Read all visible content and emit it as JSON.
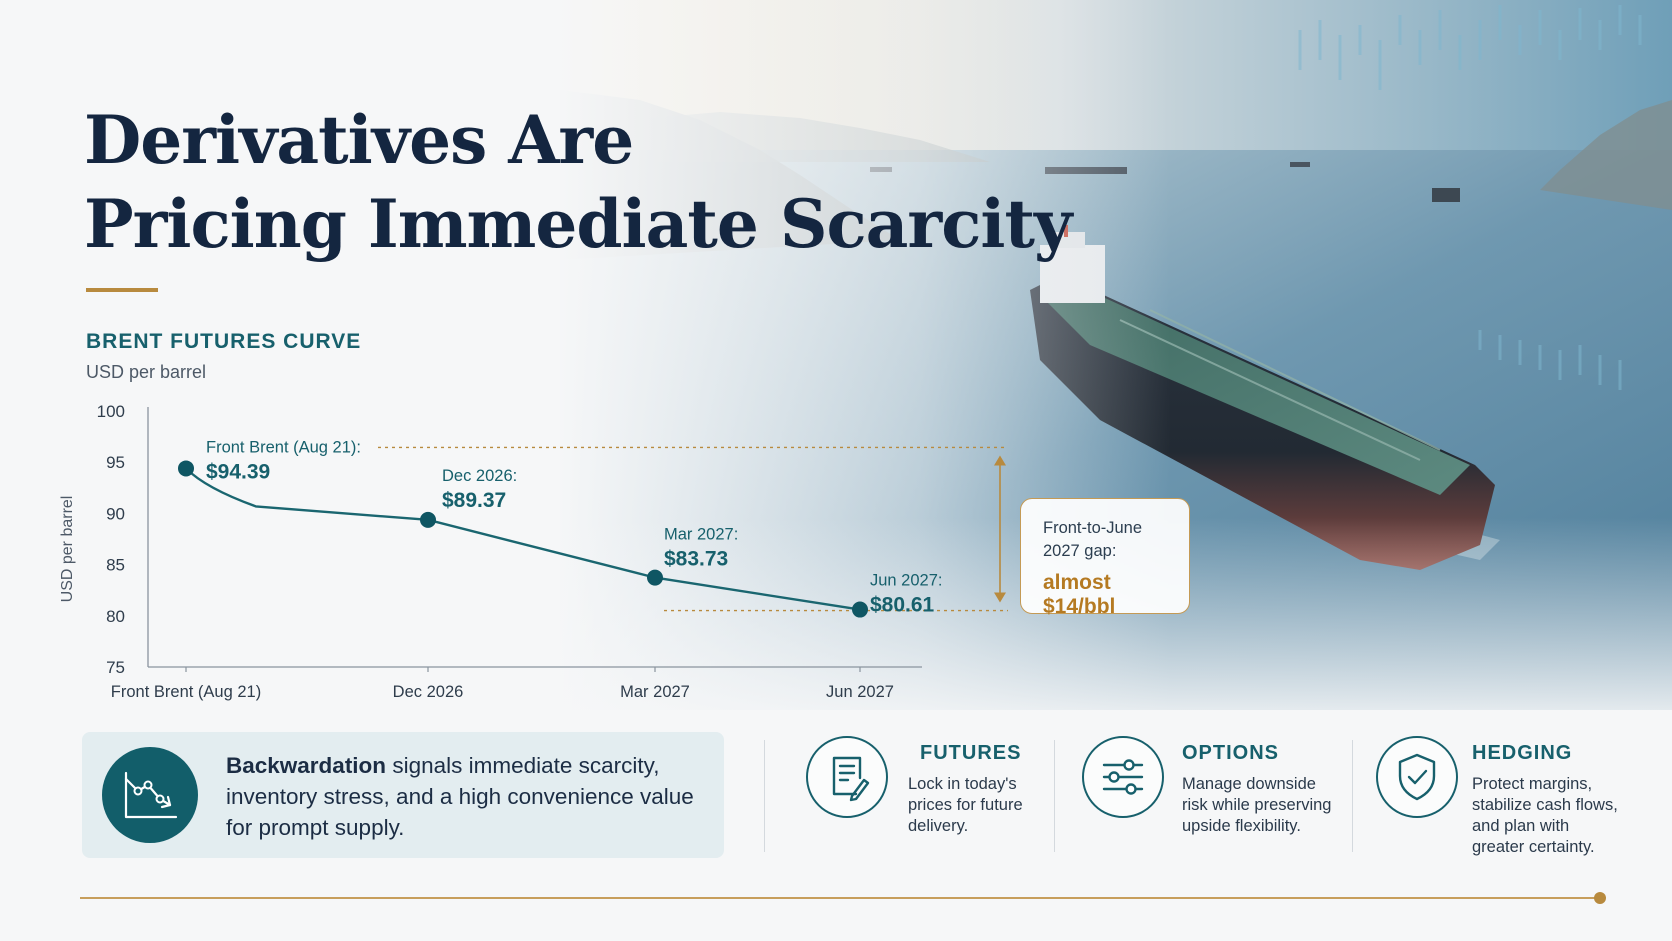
{
  "colors": {
    "accent_teal": "#17606c",
    "accent_gold": "#b88a3e",
    "title_navy": "#142640",
    "series_line": "#1a6670",
    "series_point": "#0f5663"
  },
  "title": {
    "line1": "Derivatives Are",
    "line2": "Pricing Immediate Scarcity"
  },
  "chart_data": {
    "type": "line",
    "title": "BRENT FUTURES CURVE",
    "subtitle": "USD per barrel",
    "ylabel": "USD per barrel",
    "xlabel": "",
    "categories": [
      "Front Brent (Aug 21)",
      "Dec 2026",
      "Mar 2027",
      "Jun 2027"
    ],
    "series": [
      {
        "values": [
          94.39,
          89.37,
          83.73,
          80.61
        ]
      }
    ],
    "ylim": [
      75,
      100
    ],
    "yticks": [
      75,
      80,
      85,
      90,
      95,
      100
    ],
    "grid": false,
    "data_labels": [
      {
        "label": "Front Brent (Aug 21):",
        "value": "$94.39"
      },
      {
        "label": "Dec 2026:",
        "value": "$89.37"
      },
      {
        "label": "Mar 2027:",
        "value": "$83.73"
      },
      {
        "label": "Jun 2027:",
        "value": "$80.61"
      }
    ]
  },
  "gap_callout": {
    "label": "Front-to-June 2027 gap:",
    "value": "almost $14/bbl"
  },
  "info_box": {
    "bold": "Backwardation",
    "text": " signals immediate scarcity, inventory stress, and a high convenience value for prompt supply.",
    "icon": "declining-chart-icon"
  },
  "features": [
    {
      "title": "FUTURES",
      "desc": "Lock in today's prices for future delivery.",
      "icon": "contract-pen-icon"
    },
    {
      "title": "OPTIONS",
      "desc": "Manage downside risk while preserving upside flexibility.",
      "icon": "sliders-icon"
    },
    {
      "title": "HEDGING",
      "desc": "Protect margins, stabilize cash flows, and plan with greater certainty.",
      "icon": "shield-check-icon"
    }
  ]
}
